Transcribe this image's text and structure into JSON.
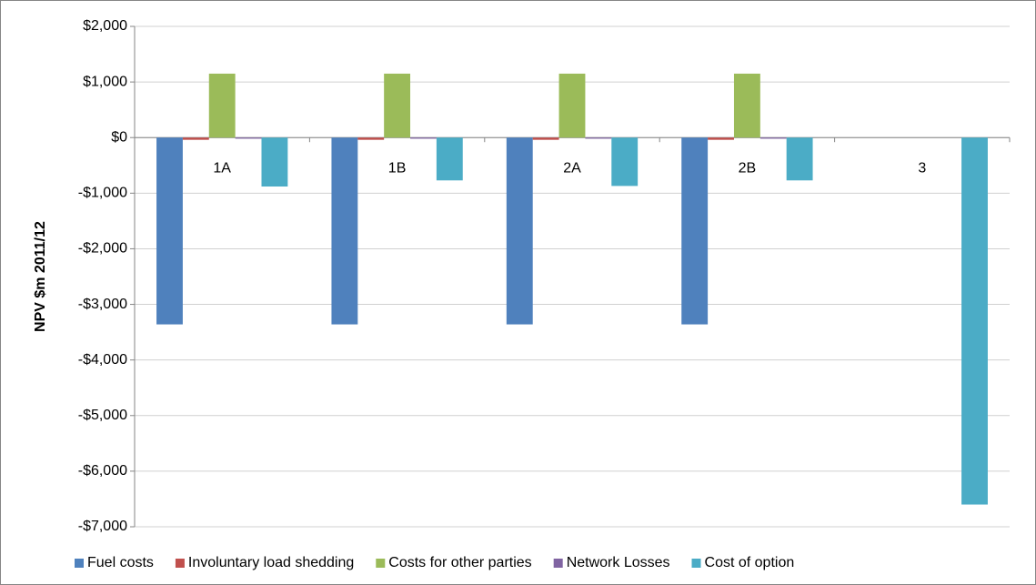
{
  "chart_data": {
    "type": "bar",
    "y_label": "NPV $m 2011/12",
    "categories": [
      "1A",
      "1B",
      "2A",
      "2B",
      "3"
    ],
    "series": [
      {
        "name": "Fuel costs",
        "color": "#4f81bd",
        "values": [
          -3360,
          -3360,
          -3360,
          -3360,
          0
        ]
      },
      {
        "name": "Involuntary load shedding",
        "color": "#c0504d",
        "values": [
          -40,
          -40,
          -40,
          -40,
          0
        ]
      },
      {
        "name": "Costs for other parties",
        "color": "#9bbb59",
        "values": [
          1150,
          1150,
          1150,
          1150,
          0
        ]
      },
      {
        "name": "Network Losses",
        "color": "#8064a2",
        "values": [
          -20,
          -20,
          -20,
          -20,
          0
        ]
      },
      {
        "name": "Cost of option",
        "color": "#4bacc6",
        "values": [
          -880,
          -770,
          -870,
          -770,
          -6600
        ]
      }
    ],
    "ylim": [
      -7000,
      2000
    ],
    "yticks": [
      {
        "value": -7000,
        "label": "-$7,000"
      },
      {
        "value": -6000,
        "label": "-$6,000"
      },
      {
        "value": -5000,
        "label": "-$5,000"
      },
      {
        "value": -4000,
        "label": "-$4,000"
      },
      {
        "value": -3000,
        "label": "-$3,000"
      },
      {
        "value": -2000,
        "label": "-$2,000"
      },
      {
        "value": -1000,
        "label": "-$1,000"
      },
      {
        "value": 0,
        "label": "$0"
      },
      {
        "value": 1000,
        "label": "$1,000"
      },
      {
        "value": 2000,
        "label": "$2,000"
      }
    ],
    "negative_tick_color": "#ff0000",
    "grid": true,
    "legend": "bottom"
  }
}
